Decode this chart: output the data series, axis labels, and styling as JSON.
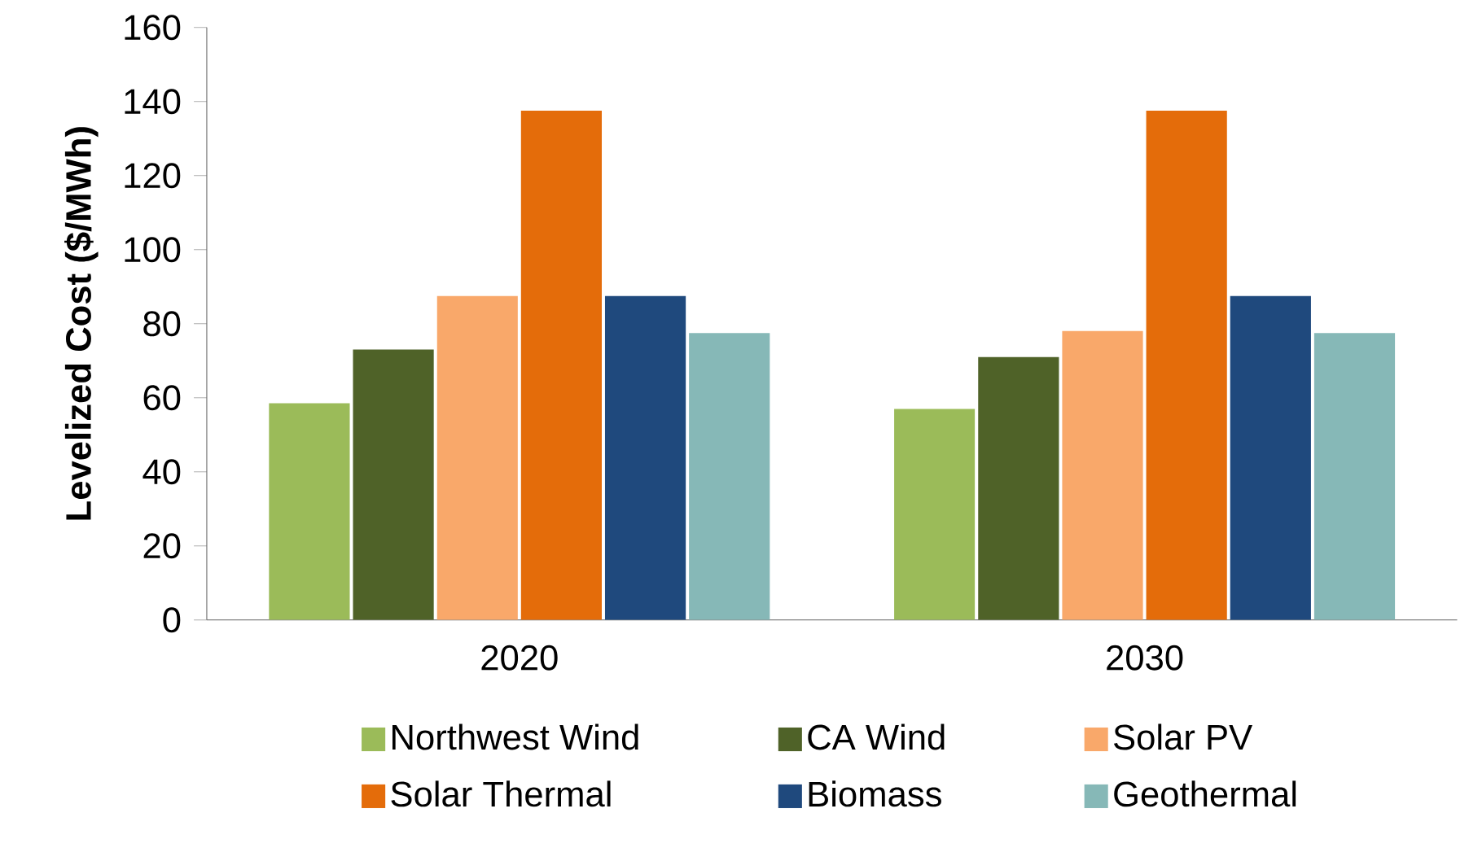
{
  "chart_data": {
    "type": "bar",
    "ylabel": "Levelized Cost ($/MWh)",
    "categories": [
      "2020",
      "2030"
    ],
    "series": [
      {
        "name": "Northwest Wind",
        "color": "#9bbb59",
        "values": [
          58.5,
          57
        ]
      },
      {
        "name": "CA Wind",
        "color": "#4f6228",
        "values": [
          73,
          71
        ]
      },
      {
        "name": "Solar PV",
        "color": "#f9a86a",
        "values": [
          87.5,
          78
        ]
      },
      {
        "name": "Solar Thermal",
        "color": "#e46c0a",
        "values": [
          137.5,
          137.5
        ]
      },
      {
        "name": "Biomass",
        "color": "#1f497d",
        "values": [
          87.5,
          87.5
        ]
      },
      {
        "name": "Geothermal",
        "color": "#86b8b7",
        "values": [
          77.5,
          77.5
        ]
      }
    ],
    "ylim": [
      0,
      160
    ],
    "yticks": [
      0,
      20,
      40,
      60,
      80,
      100,
      120,
      140,
      160
    ],
    "grid": false,
    "legend": "bottom"
  }
}
